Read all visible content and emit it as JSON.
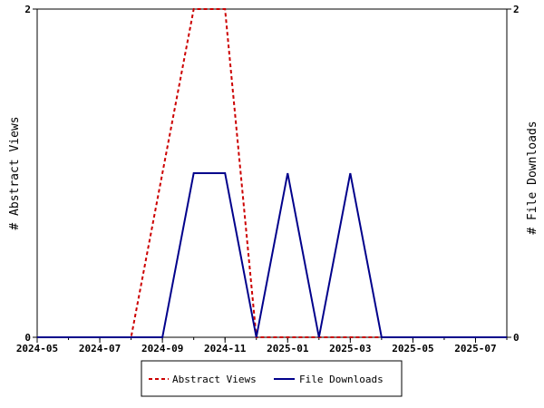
{
  "chart_data": {
    "type": "line",
    "x": [
      "2024-05",
      "2024-06",
      "2024-07",
      "2024-08",
      "2024-09",
      "2024-10",
      "2024-11",
      "2024-12",
      "2025-01",
      "2025-02",
      "2025-03",
      "2025-04",
      "2025-05",
      "2025-06",
      "2025-07",
      "2025-08"
    ],
    "series": [
      {
        "name": "Abstract Views",
        "axis": "left",
        "color": "#cc0000",
        "dash": "dashed",
        "values": [
          0,
          0,
          0,
          0,
          1,
          2,
          2,
          0,
          0,
          0,
          0,
          0,
          0,
          0,
          0,
          0
        ]
      },
      {
        "name": "File Downloads",
        "axis": "right",
        "color": "#00008b",
        "dash": "solid",
        "values": [
          0,
          0,
          0,
          0,
          0,
          1,
          1,
          0,
          1,
          0,
          1,
          0,
          0,
          0,
          0,
          0
        ]
      }
    ],
    "xticks": [
      "2024-05",
      "2024-07",
      "2024-09",
      "2024-11",
      "2025-01",
      "2025-03",
      "2025-05",
      "2025-07"
    ],
    "ylabel_left": "# Abstract Views",
    "ylabel_right": "# File Downloads",
    "ylim_left": [
      0,
      2
    ],
    "ylim_right": [
      0,
      2
    ],
    "yticks_left": [
      "0",
      "2"
    ],
    "yticks_right": [
      "0",
      "2"
    ],
    "legend_position": "bottom"
  }
}
